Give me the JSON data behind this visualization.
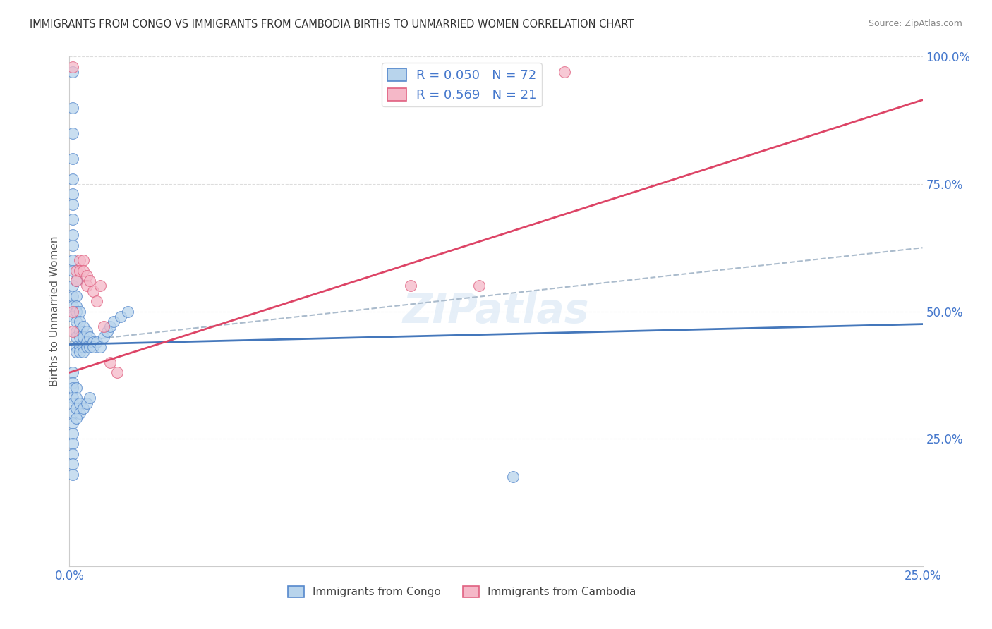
{
  "title": "IMMIGRANTS FROM CONGO VS IMMIGRANTS FROM CAMBODIA BIRTHS TO UNMARRIED WOMEN CORRELATION CHART",
  "source": "Source: ZipAtlas.com",
  "ylabel": "Births to Unmarried Women",
  "legend_label_congo": "Immigrants from Congo",
  "legend_label_cambodia": "Immigrants from Cambodia",
  "r_congo": 0.05,
  "n_congo": 72,
  "r_cambodia": 0.569,
  "n_cambodia": 21,
  "xlim": [
    0.0,
    0.25
  ],
  "ylim": [
    0.0,
    1.0
  ],
  "xtick_labels": [
    "0.0%",
    "",
    "",
    "",
    "",
    "25.0%"
  ],
  "ytick_labels": [
    "",
    "25.0%",
    "50.0%",
    "75.0%",
    "100.0%"
  ],
  "background_color": "#ffffff",
  "grid_color": "#dddddd",
  "congo_fill": "#b8d4ec",
  "cambodia_fill": "#f5b8c8",
  "congo_edge": "#5588cc",
  "cambodia_edge": "#e06080",
  "congo_line_color": "#4477bb",
  "cambodia_line_color": "#dd4466",
  "ref_line_color": "#aabbcc",
  "watermark": "ZIPatlas",
  "tick_label_color": "#4477cc",
  "congo_line_x0": 0.0,
  "congo_line_y0": 0.435,
  "congo_line_x1": 0.25,
  "congo_line_y1": 0.475,
  "cambodia_line_x0": 0.0,
  "cambodia_line_y0": 0.38,
  "cambodia_line_x1": 0.25,
  "cambodia_line_y1": 0.915,
  "ref_line_x0": 0.0,
  "ref_line_y0": 0.44,
  "ref_line_x1": 0.25,
  "ref_line_y1": 0.625,
  "congo_scatter_x": [
    0.001,
    0.001,
    0.001,
    0.001,
    0.001,
    0.001,
    0.001,
    0.001,
    0.001,
    0.001,
    0.001,
    0.001,
    0.001,
    0.001,
    0.001,
    0.001,
    0.002,
    0.002,
    0.002,
    0.002,
    0.002,
    0.002,
    0.002,
    0.002,
    0.002,
    0.003,
    0.003,
    0.003,
    0.003,
    0.003,
    0.003,
    0.004,
    0.004,
    0.004,
    0.004,
    0.005,
    0.005,
    0.005,
    0.006,
    0.006,
    0.007,
    0.007,
    0.008,
    0.009,
    0.01,
    0.011,
    0.012,
    0.013,
    0.015,
    0.017,
    0.001,
    0.001,
    0.001,
    0.001,
    0.001,
    0.001,
    0.002,
    0.002,
    0.002,
    0.003,
    0.003,
    0.004,
    0.005,
    0.006,
    0.001,
    0.002,
    0.001,
    0.001,
    0.001,
    0.13,
    0.001,
    0.001
  ],
  "congo_scatter_y": [
    0.97,
    0.9,
    0.85,
    0.8,
    0.76,
    0.73,
    0.71,
    0.68,
    0.65,
    0.63,
    0.6,
    0.58,
    0.55,
    0.53,
    0.51,
    0.49,
    0.56,
    0.53,
    0.51,
    0.5,
    0.48,
    0.46,
    0.45,
    0.43,
    0.42,
    0.5,
    0.48,
    0.46,
    0.45,
    0.43,
    0.42,
    0.47,
    0.45,
    0.43,
    0.42,
    0.46,
    0.44,
    0.43,
    0.45,
    0.43,
    0.44,
    0.43,
    0.44,
    0.43,
    0.45,
    0.46,
    0.47,
    0.48,
    0.49,
    0.5,
    0.38,
    0.36,
    0.35,
    0.33,
    0.32,
    0.3,
    0.35,
    0.33,
    0.31,
    0.32,
    0.3,
    0.31,
    0.32,
    0.33,
    0.28,
    0.29,
    0.26,
    0.24,
    0.22,
    0.175,
    0.2,
    0.18
  ],
  "cambodia_scatter_x": [
    0.001,
    0.002,
    0.002,
    0.003,
    0.003,
    0.004,
    0.004,
    0.005,
    0.005,
    0.006,
    0.007,
    0.008,
    0.009,
    0.01,
    0.012,
    0.014,
    0.1,
    0.12,
    0.145,
    0.001,
    0.001
  ],
  "cambodia_scatter_y": [
    0.98,
    0.58,
    0.56,
    0.6,
    0.58,
    0.6,
    0.58,
    0.57,
    0.55,
    0.56,
    0.54,
    0.52,
    0.55,
    0.47,
    0.4,
    0.38,
    0.55,
    0.55,
    0.97,
    0.5,
    0.46
  ]
}
